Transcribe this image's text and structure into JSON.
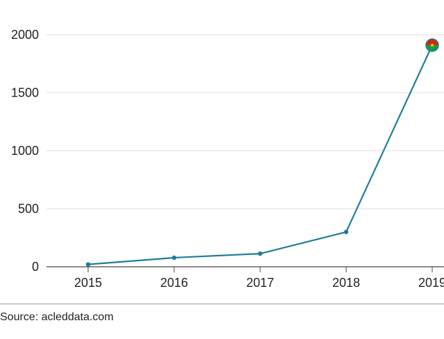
{
  "chart_data": {
    "type": "line",
    "x": [
      "2015",
      "2016",
      "2017",
      "2018",
      "2019"
    ],
    "series": [
      {
        "values": [
          20,
          78,
          113,
          300,
          1910
        ],
        "color": "#1f7c9a"
      }
    ],
    "ylim": [
      0,
      2000
    ],
    "yticks": [
      "0",
      "500",
      "1000",
      "1500",
      "2000"
    ],
    "xlabel": "",
    "ylabel": "",
    "grid": "horizontal",
    "last_point_marker": "burkina-faso-flag-icon"
  },
  "colors": {
    "line": "#1f7c9a",
    "grid": "#e2e2e2",
    "axis": "#444444",
    "flag_red": "#d62612",
    "flag_green": "#1a9b3a",
    "flag_star": "#fcd116"
  },
  "source": {
    "text": "Source: acleddata.com"
  }
}
